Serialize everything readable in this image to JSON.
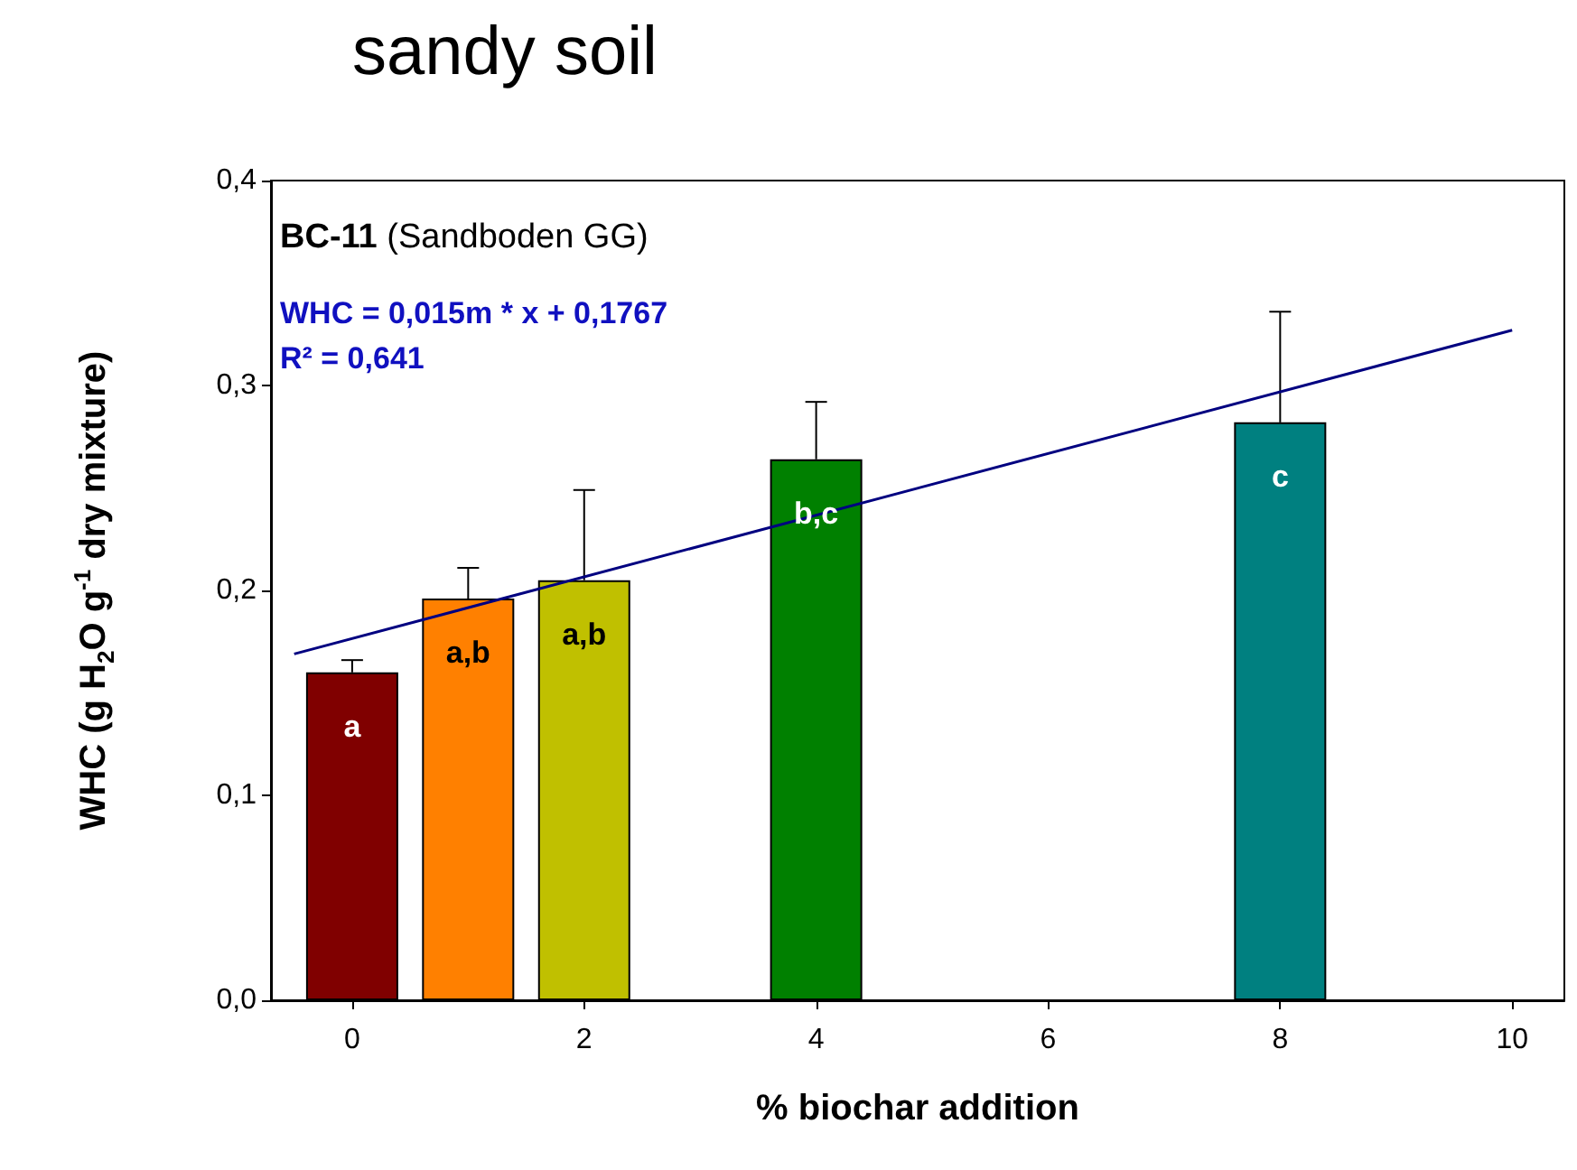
{
  "chart_data": {
    "type": "bar",
    "title": "sandy soil",
    "xlabel": "% biochar addition",
    "ylabel": "WHC (g H$_{2}$O g$^{-1}$ dry mixture)",
    "x": [
      0,
      1,
      2,
      4,
      8
    ],
    "series": [
      {
        "values": [
          0.16,
          0.196,
          0.205,
          0.264,
          0.282
        ],
        "colors": [
          "#800000",
          "#ff8000",
          "#c0c000",
          "#008000",
          "#008080"
        ],
        "errors": [
          [
            0.16,
            0.166
          ],
          [
            0.196,
            0.211
          ],
          [
            0.205,
            0.249
          ],
          [
            0.264,
            0.292
          ],
          [
            0.282,
            0.336
          ]
        ]
      },
      {
        "type": "line",
        "x": [
          -0.5,
          10
        ],
        "values": [
          0.169,
          0.327
        ],
        "color": "#000080",
        "marker": "none"
      }
    ],
    "xlim": [
      -0.7,
      10.45
    ],
    "xticks": [
      0,
      2,
      4,
      6,
      8,
      10
    ],
    "ylim": [
      0,
      0.4
    ],
    "yticks": [
      {
        "value": 0,
        "label": "0,0"
      },
      {
        "value": 0.1,
        "label": "0,1"
      },
      {
        "value": 0.2,
        "label": "0,2"
      },
      {
        "value": 0.3,
        "label": "0,3"
      },
      {
        "value": 0.4,
        "label": "0,4"
      }
    ],
    "grid": false,
    "annotations": [
      "BC-11 (Sandboden GG)",
      "WHC = 0,015m * x + 0,1767",
      "R² = 0,641",
      {
        "text": "a",
        "x": 0,
        "y": 0.16
      },
      {
        "text": "a,b",
        "x": 1,
        "y": 0.196
      },
      {
        "text": "a,b",
        "x": 2,
        "y": 0.205
      },
      {
        "text": "b,c",
        "x": 4,
        "y": 0.264
      },
      {
        "text": "c",
        "x": 8,
        "y": 0.282
      }
    ]
  }
}
